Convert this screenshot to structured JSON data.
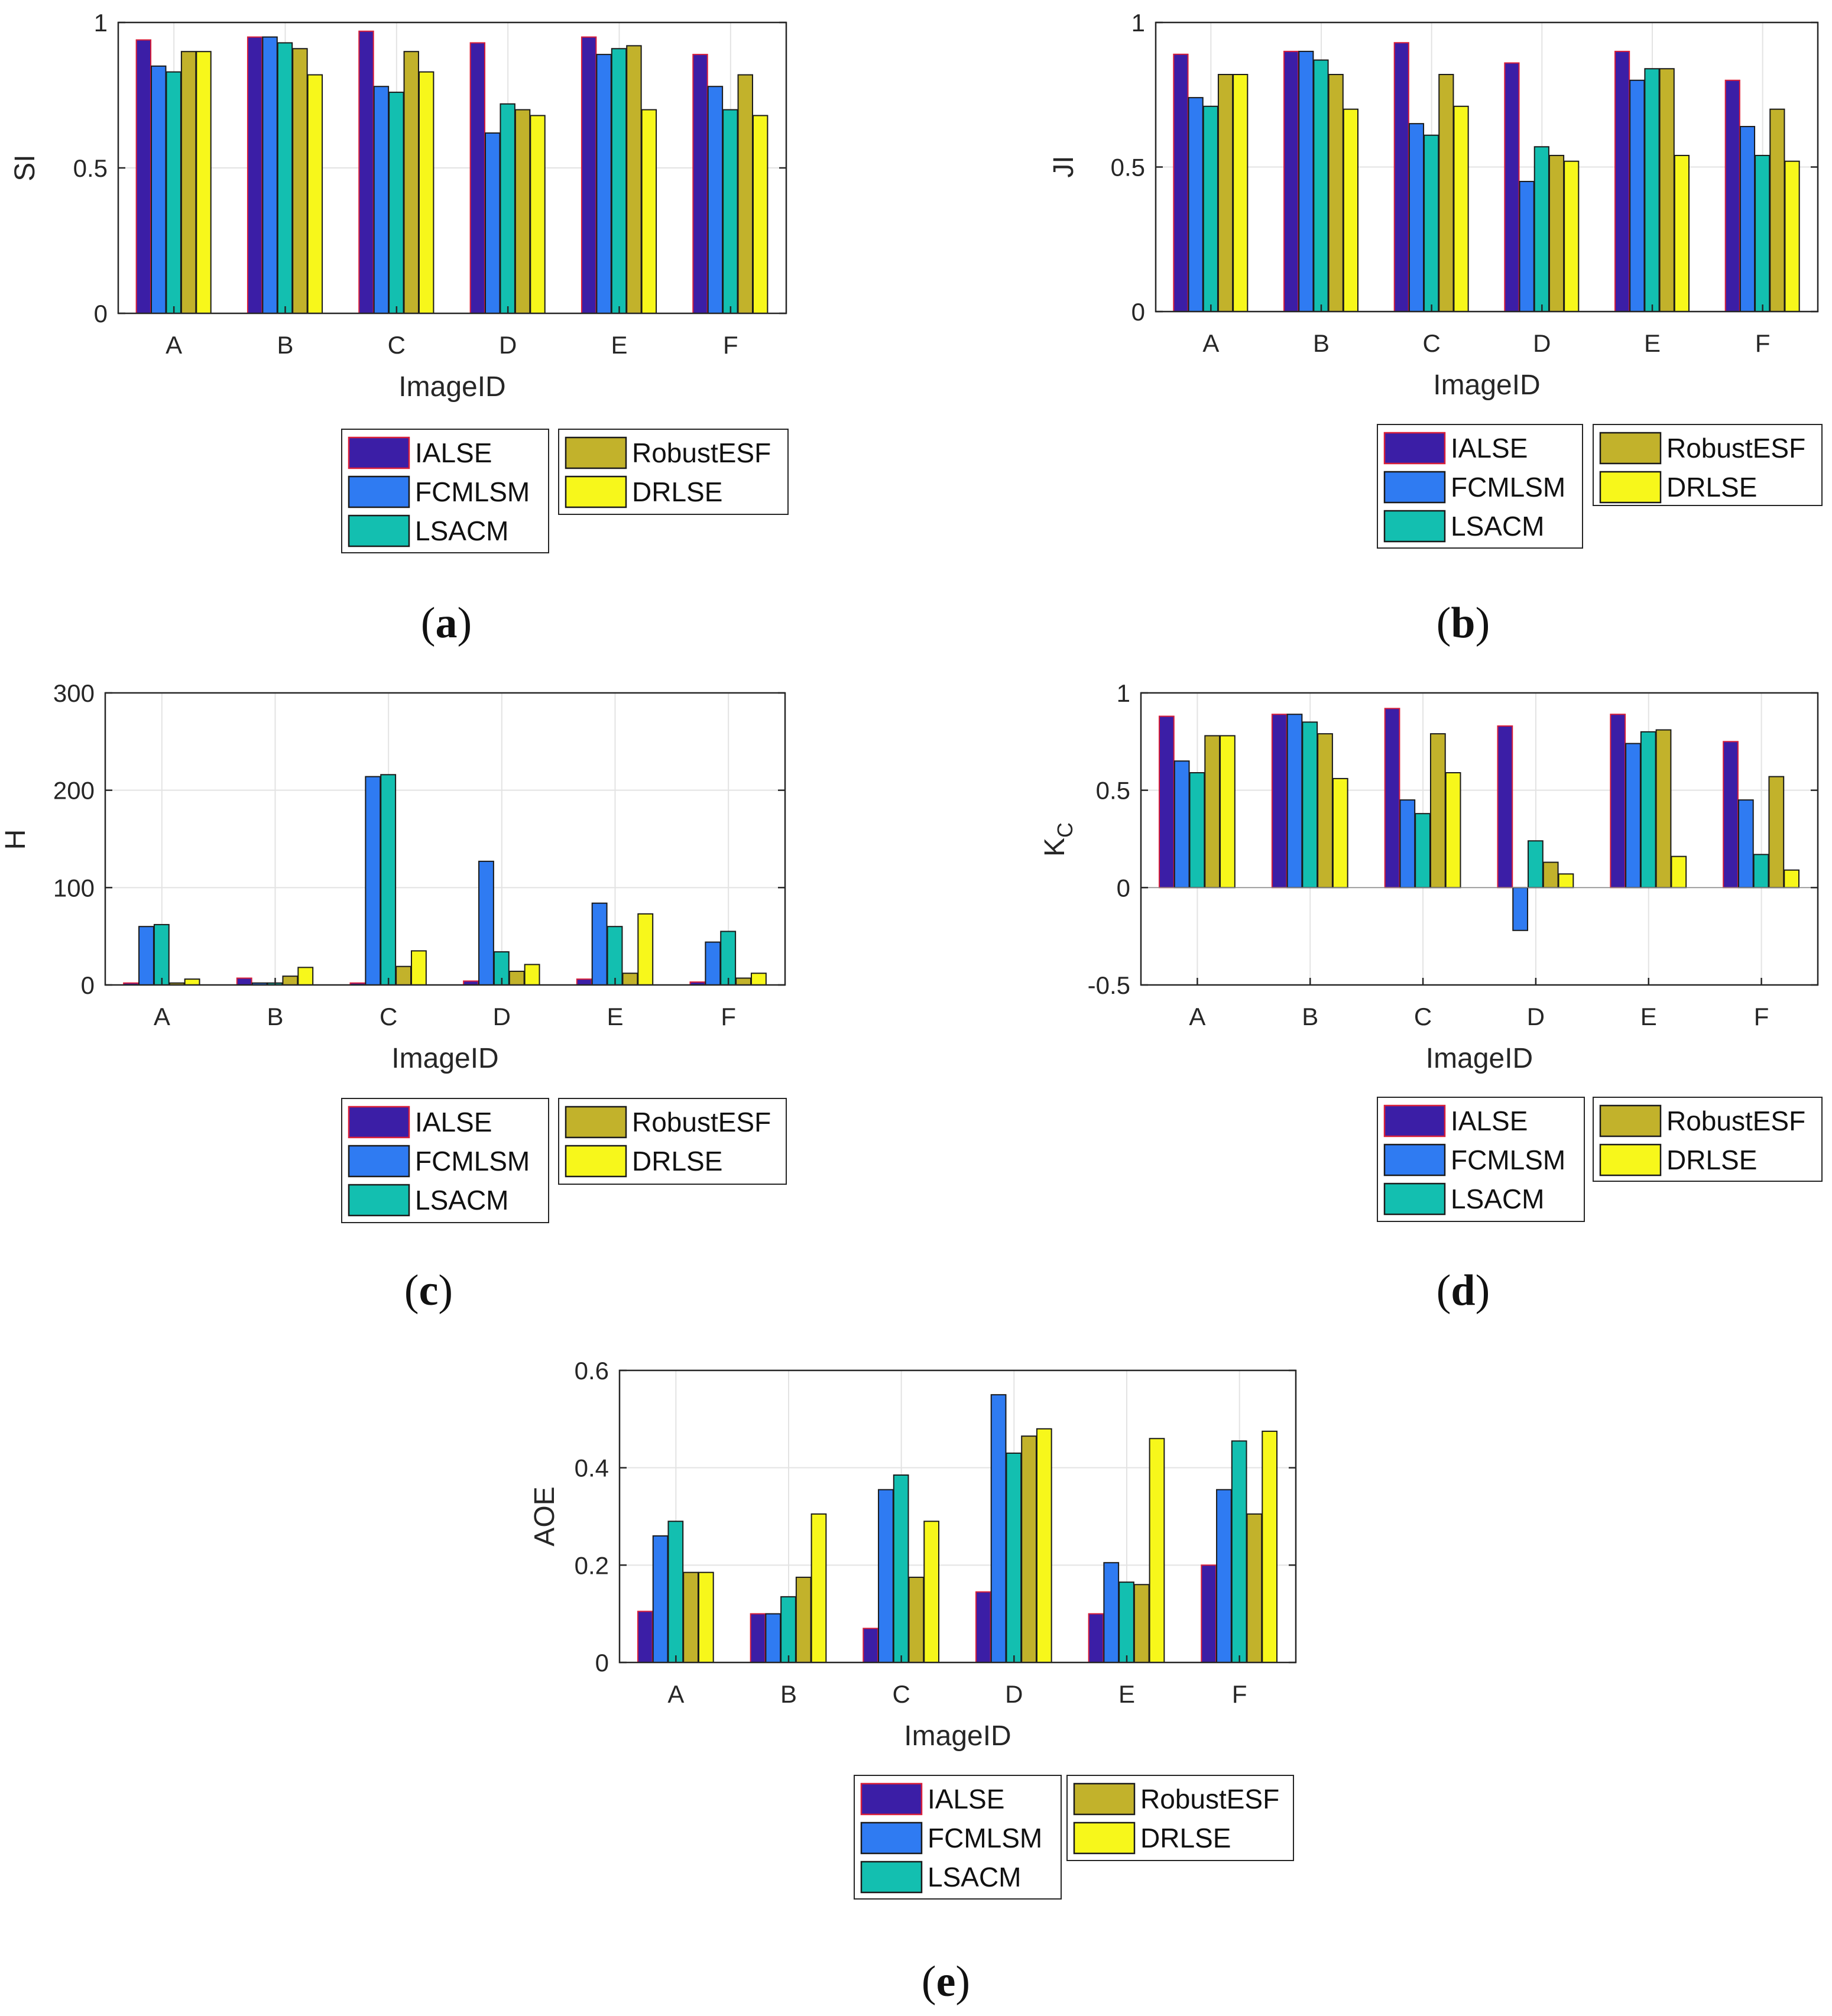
{
  "colors": {
    "IALSE": "#3b1ea6",
    "FCMLSM": "#2f7bf2",
    "LSACM": "#13bfb0",
    "RobustESF": "#c2b22b",
    "DRLSE": "#f7f71b",
    "ialse_edge": "#d81f3a",
    "grid": "#e3e3e3",
    "axis": "#262626"
  },
  "legend": {
    "col1": [
      "IALSE",
      "FCMLSM",
      "LSACM"
    ],
    "col2": [
      "RobustESF",
      "DRLSE"
    ]
  },
  "chart_data": [
    {
      "id": "a",
      "type": "bar",
      "caption": "a",
      "title": "",
      "xlabel": "ImageID",
      "ylabel": "SI",
      "ylim": [
        0,
        1
      ],
      "yticks": [
        0,
        0.5,
        1
      ],
      "ytick_labels": [
        "0",
        "0.5",
        "1"
      ],
      "categories": [
        "A",
        "B",
        "C",
        "D",
        "E",
        "F"
      ],
      "grid": true,
      "series": [
        {
          "name": "IALSE",
          "values": [
            0.94,
            0.95,
            0.97,
            0.93,
            0.95,
            0.89
          ]
        },
        {
          "name": "FCMLSM",
          "values": [
            0.85,
            0.95,
            0.78,
            0.62,
            0.89,
            0.78
          ]
        },
        {
          "name": "LSACM",
          "values": [
            0.83,
            0.93,
            0.76,
            0.72,
            0.91,
            0.7
          ]
        },
        {
          "name": "RobustESF",
          "values": [
            0.9,
            0.91,
            0.9,
            0.7,
            0.92,
            0.82
          ]
        },
        {
          "name": "DRLSE",
          "values": [
            0.9,
            0.82,
            0.83,
            0.68,
            0.7,
            0.68
          ]
        }
      ]
    },
    {
      "id": "b",
      "type": "bar",
      "caption": "b",
      "title": "",
      "xlabel": "ImageID",
      "ylabel": "JI",
      "ylim": [
        0,
        1
      ],
      "yticks": [
        0,
        0.5,
        1
      ],
      "ytick_labels": [
        "0",
        "0.5",
        "1"
      ],
      "categories": [
        "A",
        "B",
        "C",
        "D",
        "E",
        "F"
      ],
      "grid": true,
      "series": [
        {
          "name": "IALSE",
          "values": [
            0.89,
            0.9,
            0.93,
            0.86,
            0.9,
            0.8
          ]
        },
        {
          "name": "FCMLSM",
          "values": [
            0.74,
            0.9,
            0.65,
            0.45,
            0.8,
            0.64
          ]
        },
        {
          "name": "LSACM",
          "values": [
            0.71,
            0.87,
            0.61,
            0.57,
            0.84,
            0.54
          ]
        },
        {
          "name": "RobustESF",
          "values": [
            0.82,
            0.82,
            0.82,
            0.54,
            0.84,
            0.7
          ]
        },
        {
          "name": "DRLSE",
          "values": [
            0.82,
            0.7,
            0.71,
            0.52,
            0.54,
            0.52
          ]
        }
      ]
    },
    {
      "id": "c",
      "type": "bar",
      "caption": "c",
      "title": "",
      "xlabel": "ImageID",
      "ylabel": "H",
      "ylim": [
        0,
        300
      ],
      "yticks": [
        0,
        100,
        200,
        300
      ],
      "ytick_labels": [
        "0",
        "100",
        "200",
        "300"
      ],
      "categories": [
        "A",
        "B",
        "C",
        "D",
        "E",
        "F"
      ],
      "grid": true,
      "series": [
        {
          "name": "IALSE",
          "values": [
            2,
            7,
            2,
            4,
            6,
            3
          ]
        },
        {
          "name": "FCMLSM",
          "values": [
            60,
            2,
            214,
            127,
            84,
            44
          ]
        },
        {
          "name": "LSACM",
          "values": [
            62,
            2,
            216,
            34,
            60,
            55
          ]
        },
        {
          "name": "RobustESF",
          "values": [
            2,
            9,
            19,
            14,
            12,
            7
          ]
        },
        {
          "name": "DRLSE",
          "values": [
            6,
            18,
            35,
            21,
            73,
            12
          ]
        }
      ]
    },
    {
      "id": "d",
      "type": "bar",
      "caption": "d",
      "title": "",
      "xlabel": "ImageID",
      "ylabel": "K",
      "ylabel_sub": "C",
      "ylim": [
        -0.5,
        1
      ],
      "yticks": [
        -0.5,
        0,
        0.5,
        1
      ],
      "ytick_labels": [
        "-0.5",
        "0",
        "0.5",
        "1"
      ],
      "categories": [
        "A",
        "B",
        "C",
        "D",
        "E",
        "F"
      ],
      "grid": true,
      "series": [
        {
          "name": "IALSE",
          "values": [
            0.88,
            0.89,
            0.92,
            0.83,
            0.89,
            0.75
          ]
        },
        {
          "name": "FCMLSM",
          "values": [
            0.65,
            0.89,
            0.45,
            -0.22,
            0.74,
            0.45
          ]
        },
        {
          "name": "LSACM",
          "values": [
            0.59,
            0.85,
            0.38,
            0.24,
            0.8,
            0.17
          ]
        },
        {
          "name": "RobustESF",
          "values": [
            0.78,
            0.79,
            0.79,
            0.13,
            0.81,
            0.57
          ]
        },
        {
          "name": "DRLSE",
          "values": [
            0.78,
            0.56,
            0.59,
            0.07,
            0.16,
            0.09
          ]
        }
      ]
    },
    {
      "id": "e",
      "type": "bar",
      "caption": "e",
      "title": "",
      "xlabel": "ImageID",
      "ylabel": "AOE",
      "ylim": [
        0,
        0.6
      ],
      "yticks": [
        0,
        0.2,
        0.4,
        0.6
      ],
      "ytick_labels": [
        "0",
        "0.2",
        "0.4",
        "0.6"
      ],
      "categories": [
        "A",
        "B",
        "C",
        "D",
        "E",
        "F"
      ],
      "grid": true,
      "series": [
        {
          "name": "IALSE",
          "values": [
            0.105,
            0.1,
            0.07,
            0.145,
            0.1,
            0.2
          ]
        },
        {
          "name": "FCMLSM",
          "values": [
            0.26,
            0.1,
            0.355,
            0.55,
            0.205,
            0.355
          ]
        },
        {
          "name": "LSACM",
          "values": [
            0.29,
            0.135,
            0.385,
            0.43,
            0.165,
            0.455
          ]
        },
        {
          "name": "RobustESF",
          "values": [
            0.185,
            0.175,
            0.175,
            0.465,
            0.16,
            0.305
          ]
        },
        {
          "name": "DRLSE",
          "values": [
            0.185,
            0.305,
            0.29,
            0.48,
            0.46,
            0.475
          ]
        }
      ]
    }
  ]
}
